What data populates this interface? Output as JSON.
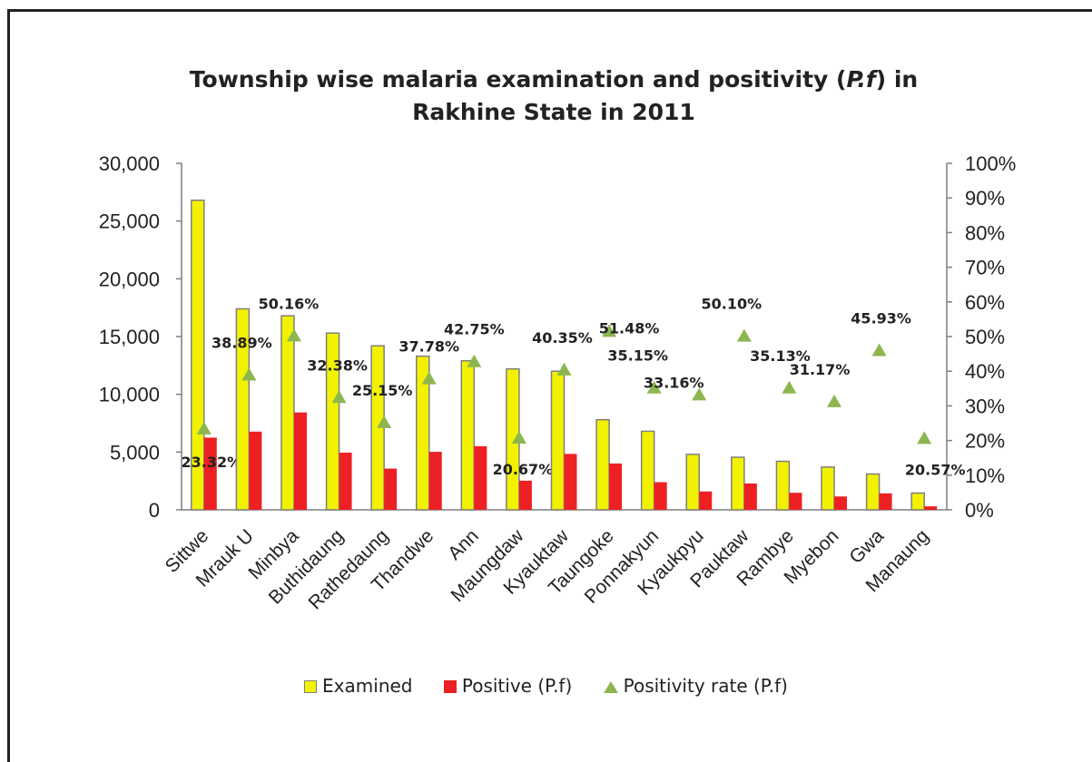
{
  "colors": {
    "examined": "#f2f200",
    "examined_border": "#7f7f7f",
    "positive": "#ed2024",
    "rate": "#8db650"
  },
  "chart_data": {
    "type": "bar",
    "title": "Township wise malaria examination and positivity (P.f) in Rakhine State in 2011",
    "title_line1": "Township wise malaria examination and positivity (",
    "title_italic": "P.f",
    "title_line1_end": ") in",
    "title_line2": "Rakhine State in 2011",
    "categories": [
      "Sittwe",
      "Mrauk U",
      "Minbya",
      "Buthidaung",
      "Rathedaung",
      "Thandwe",
      "Ann",
      "Maungdaw",
      "Kyauktaw",
      "Taungoke",
      "Ponnakyun",
      "Kyaukpyu",
      "Pauktaw",
      "Rambye",
      "Myebon",
      "Gwa",
      "Manaung"
    ],
    "series": [
      {
        "name": "Examined",
        "type": "bar",
        "axis": "left",
        "values": [
          26800,
          17400,
          16800,
          15300,
          14200,
          13300,
          12900,
          12200,
          12000,
          7800,
          6800,
          4800,
          4550,
          4200,
          3700,
          3100,
          1450
        ]
      },
      {
        "name": "Positive (P.f)",
        "type": "bar",
        "axis": "left",
        "values": [
          6250,
          6770,
          8430,
          4950,
          3570,
          5020,
          5510,
          2520,
          4840,
          4010,
          2390,
          1590,
          2280,
          1475,
          1155,
          1425,
          300
        ]
      },
      {
        "name": "Positivity rate (P.f)",
        "type": "scatter",
        "axis": "right",
        "values": [
          23.32,
          38.89,
          50.16,
          32.38,
          25.15,
          37.78,
          42.75,
          20.67,
          40.35,
          51.48,
          35.15,
          33.16,
          50.1,
          35.13,
          31.17,
          45.93,
          20.57
        ],
        "labels": [
          "23.32%",
          "38.89%",
          "50.16%",
          "32.38%",
          "25.15%",
          "37.78%",
          "42.75%",
          "20.67%",
          "40.35%",
          "51.48%",
          "35.15%",
          "33.16%",
          "50.10%",
          "35.13%",
          "31.17%",
          "45.93%",
          "20.57%"
        ]
      }
    ],
    "ylim_left": [
      0,
      30000
    ],
    "yticks_left": [
      "0",
      "5,000",
      "10,000",
      "15,000",
      "20,000",
      "25,000",
      "30,000"
    ],
    "ylim_right": [
      0,
      100
    ],
    "yticks_right": [
      "0%",
      "10%",
      "20%",
      "30%",
      "40%",
      "50%",
      "60%",
      "70%",
      "80%",
      "90%",
      "100%"
    ],
    "legend_position": "bottom",
    "grid": false
  },
  "legend": {
    "examined": "Examined",
    "positive": "Positive (P.f)",
    "rate": "Positivity rate (P.f)"
  }
}
